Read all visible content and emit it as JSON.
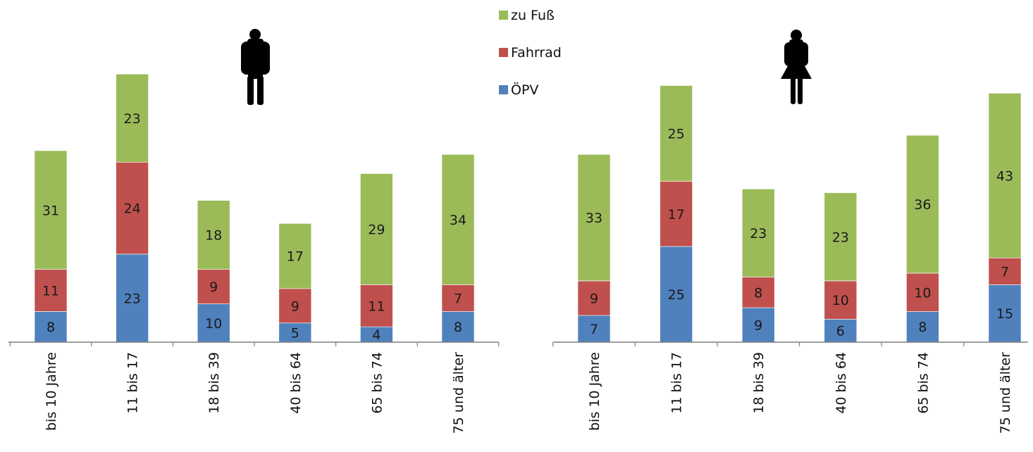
{
  "chart_data": [
    {
      "type": "bar",
      "stacked": true,
      "panel": "male",
      "icon": "male-figure-icon",
      "categories": [
        "bis 10 Jahre",
        "11 bis 17",
        "18 bis 39",
        "40 bis 64",
        "65 bis 74",
        "75 und älter"
      ],
      "series": [
        {
          "name": "ÖPV",
          "color": "#4f81bd",
          "values": [
            8,
            23,
            10,
            5,
            4,
            8
          ]
        },
        {
          "name": "Fahrrad",
          "color": "#c0504d",
          "values": [
            11,
            24,
            9,
            9,
            11,
            7
          ]
        },
        {
          "name": "zu Fuß",
          "color": "#9bbb59",
          "values": [
            31,
            23,
            18,
            17,
            29,
            34
          ]
        }
      ],
      "ylim": [
        0,
        70
      ]
    },
    {
      "type": "bar",
      "stacked": true,
      "panel": "female",
      "icon": "female-figure-icon",
      "categories": [
        "bis 10 Jahre",
        "11 bis 17",
        "18 bis 39",
        "40 bis 64",
        "65 bis 74",
        "75 und älter"
      ],
      "series": [
        {
          "name": "ÖPV",
          "color": "#4f81bd",
          "values": [
            7,
            25,
            9,
            6,
            8,
            15
          ]
        },
        {
          "name": "Fahrrad",
          "color": "#c0504d",
          "values": [
            9,
            17,
            8,
            10,
            10,
            7
          ]
        },
        {
          "name": "zu Fuß",
          "color": "#9bbb59",
          "values": [
            33,
            25,
            23,
            23,
            36,
            43
          ]
        }
      ],
      "ylim": [
        0,
        70
      ]
    }
  ],
  "legend": {
    "placement": "top-center",
    "items": [
      {
        "label": "zu Fuß",
        "color": "#9bbb59"
      },
      {
        "label": "Fahrrad",
        "color": "#c0504d"
      },
      {
        "label": "ÖPV",
        "color": "#4f81bd"
      }
    ]
  }
}
